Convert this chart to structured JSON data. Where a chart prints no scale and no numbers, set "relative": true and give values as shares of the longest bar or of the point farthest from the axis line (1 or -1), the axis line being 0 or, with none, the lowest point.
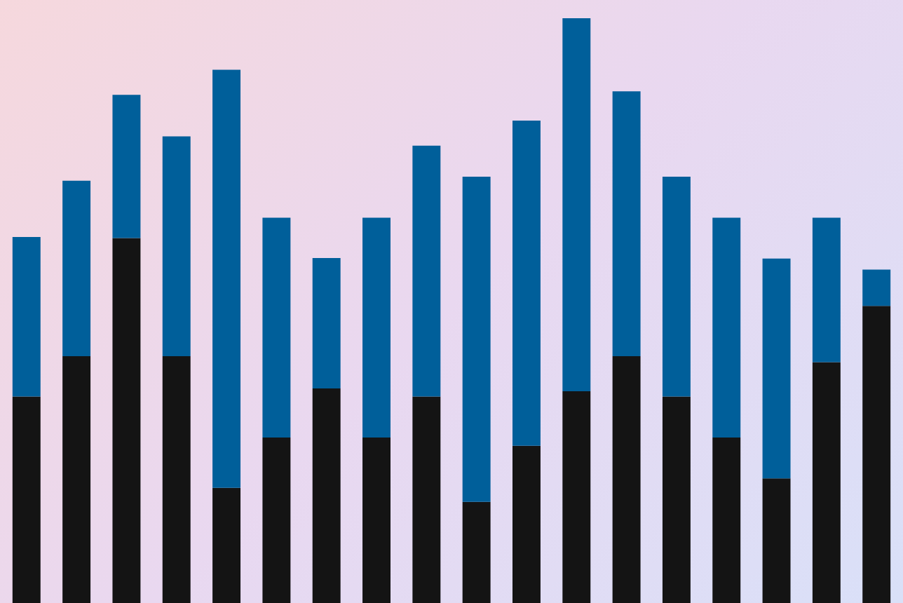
{
  "chart_data": {
    "type": "bar",
    "stacked": true,
    "relative": true,
    "categories": [
      null,
      null,
      null,
      null,
      null,
      null,
      null,
      null,
      null,
      null,
      null,
      null,
      null,
      null,
      null,
      null,
      null,
      null
    ],
    "series": [
      {
        "color": "#141414",
        "values": [
          0.353,
          0.422,
          0.624,
          0.422,
          0.197,
          0.283,
          0.367,
          0.283,
          0.353,
          0.173,
          0.269,
          0.362,
          0.422,
          0.353,
          0.283,
          0.213,
          0.412,
          0.508
        ]
      },
      {
        "color": "#005f9a",
        "values": [
          0.273,
          0.3,
          0.245,
          0.376,
          0.715,
          0.376,
          0.223,
          0.376,
          0.429,
          0.556,
          0.556,
          0.638,
          0.453,
          0.376,
          0.376,
          0.376,
          0.247,
          0.062
        ]
      }
    ]
  }
}
